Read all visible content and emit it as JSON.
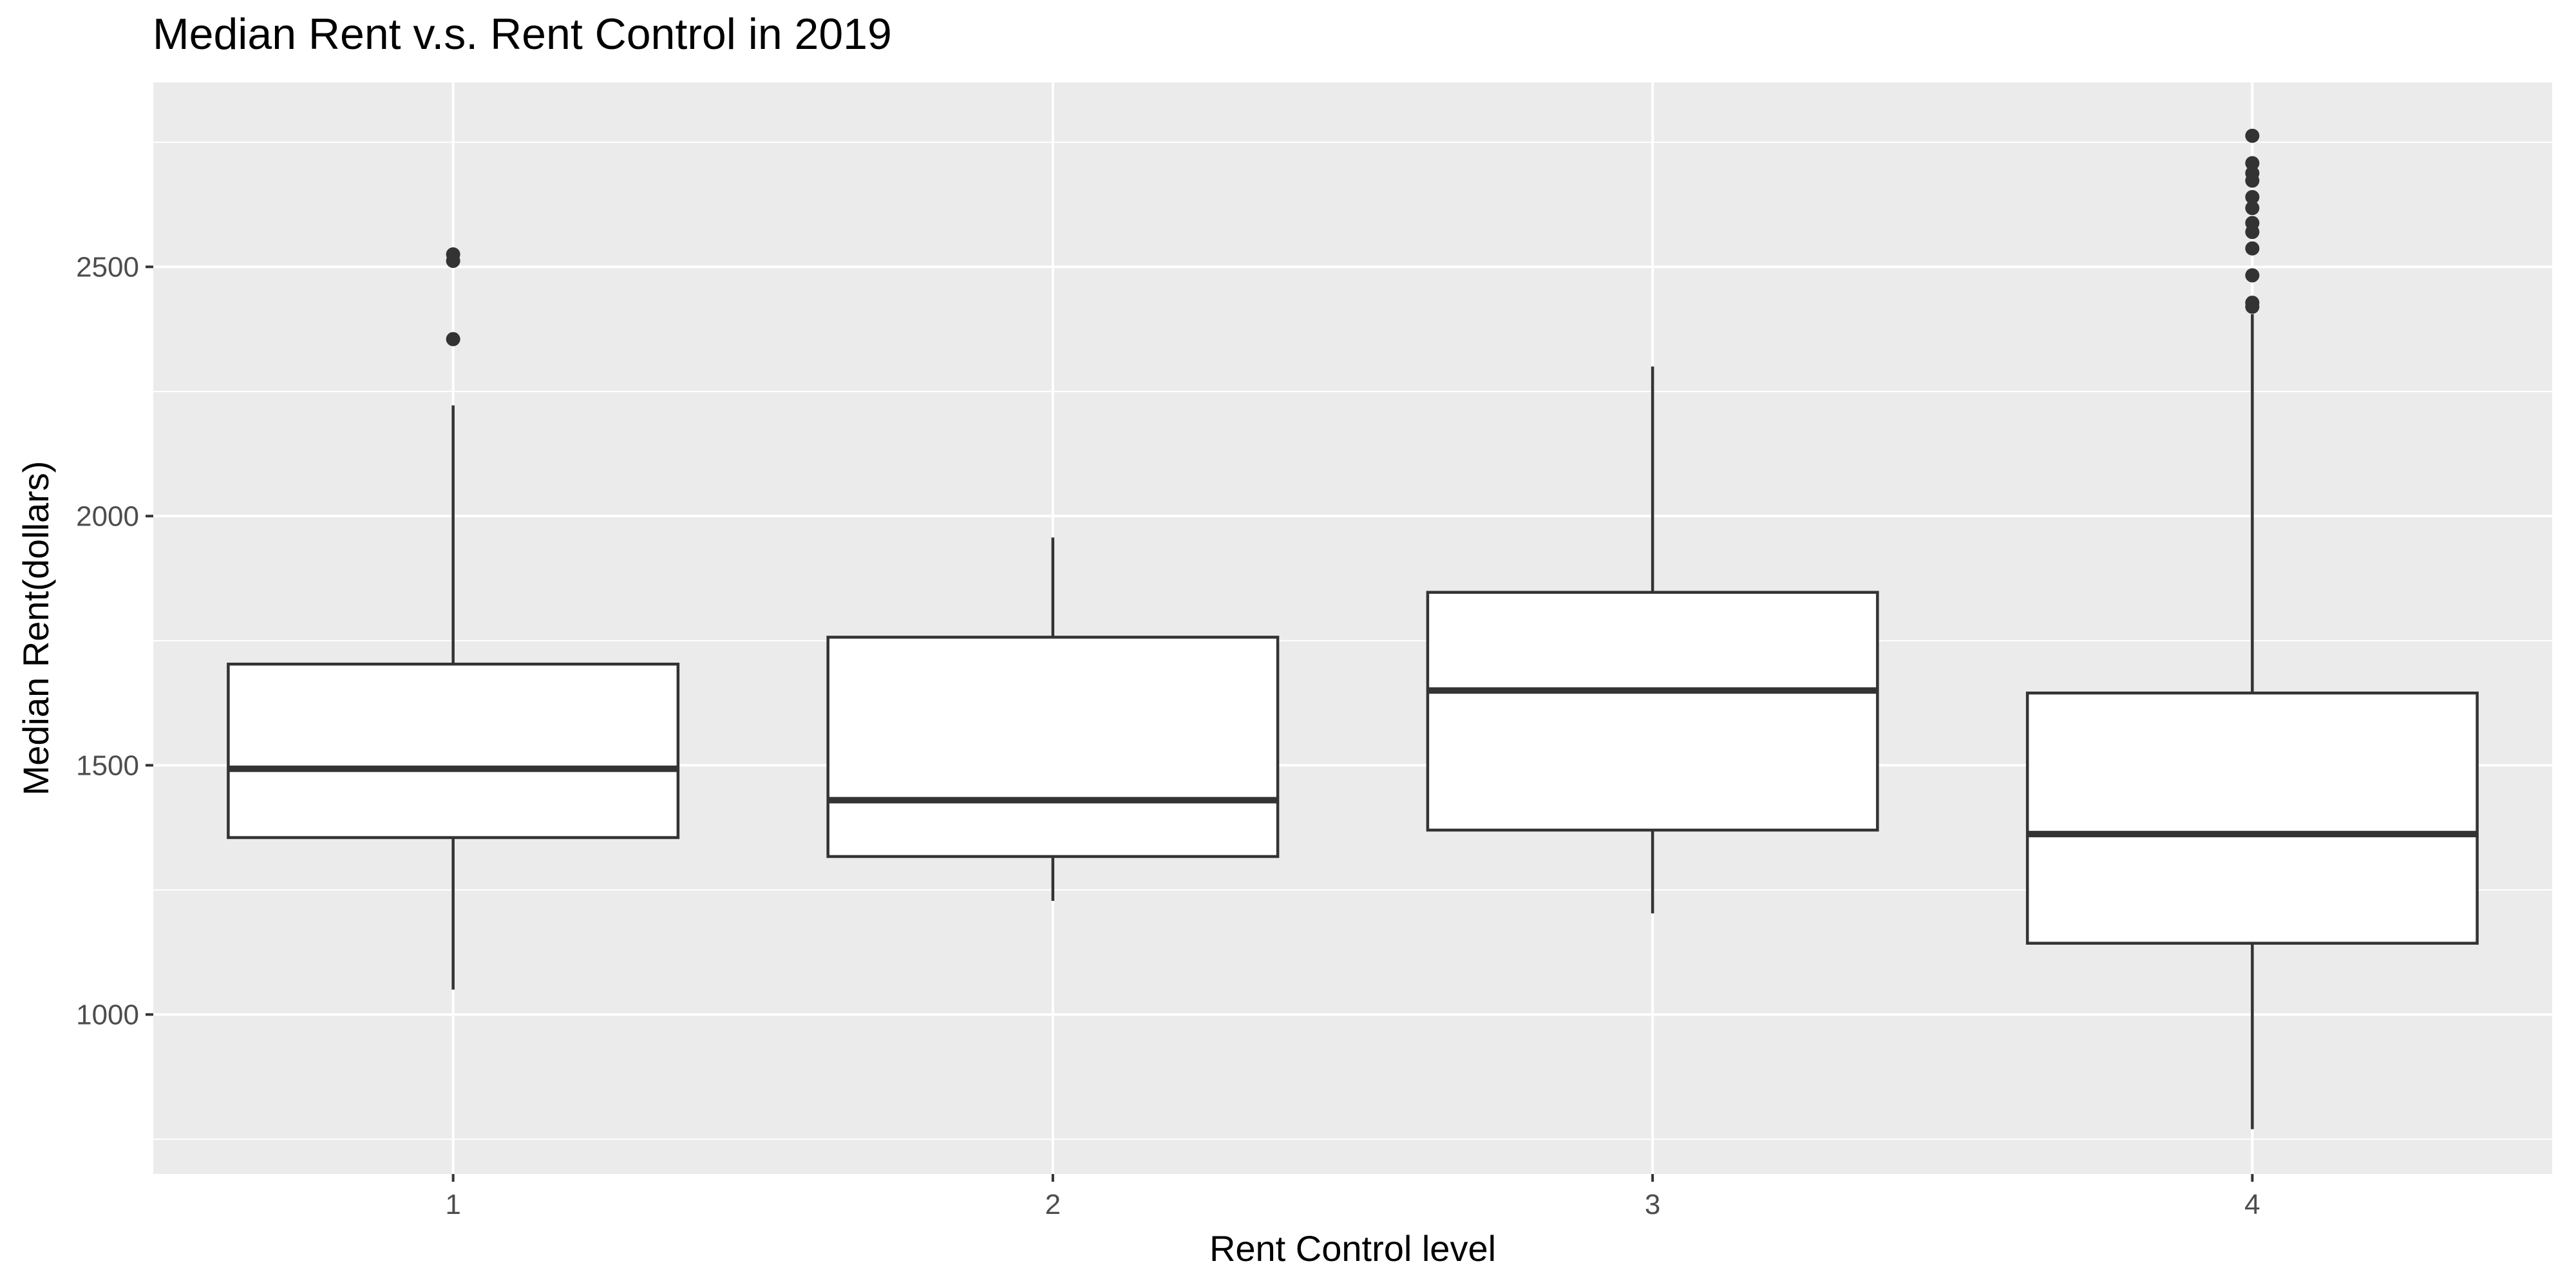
{
  "chart_data": {
    "type": "box",
    "title": "Median Rent v.s. Rent Control in 2019",
    "xlabel": "Rent Control level",
    "ylabel": "Median Rent(dollars)",
    "categories": [
      "1",
      "2",
      "3",
      "4"
    ],
    "ylim": [
      680,
      2870
    ],
    "yticks": [
      1000,
      1500,
      2000,
      2500
    ],
    "ytick_labels": [
      "1000",
      "1500",
      "2000",
      "2500"
    ],
    "grid": true,
    "boxes": [
      {
        "category": "1",
        "whisker_low": 1050,
        "q1": 1355,
        "median": 1493,
        "q3": 1703,
        "whisker_high": 2222,
        "outliers": [
          2355,
          2512,
          2525
        ]
      },
      {
        "category": "2",
        "whisker_low": 1228,
        "q1": 1317,
        "median": 1430,
        "q3": 1757,
        "whisker_high": 1957,
        "outliers": []
      },
      {
        "category": "3",
        "whisker_low": 1203,
        "q1": 1370,
        "median": 1650,
        "q3": 1847,
        "whisker_high": 2300,
        "outliers": []
      },
      {
        "category": "4",
        "whisker_low": 770,
        "q1": 1143,
        "median": 1362,
        "q3": 1645,
        "whisker_high": 2405,
        "outliers": [
          2420,
          2428,
          2483,
          2537,
          2570,
          2588,
          2618,
          2640,
          2673,
          2688,
          2708,
          2763
        ]
      }
    ],
    "colors": {
      "panel": "#EBEBEB",
      "grid": "#FFFFFF",
      "box_fill": "#FFFFFF",
      "box_line": "#333333",
      "outlier": "#333333"
    }
  }
}
